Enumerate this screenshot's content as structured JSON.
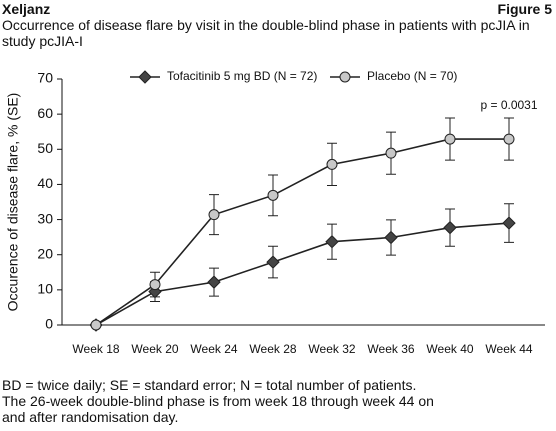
{
  "header": {
    "brand": "Xeljanz",
    "figure": "Figure 5"
  },
  "footnotes": [
    "BD = twice daily; SE = standard error; N = total number of patients.",
    "The 26-week double-blind phase is from week 18 through week 44 on and after randomisation day."
  ],
  "chart_data": {
    "type": "line",
    "title": "Occurrence of disease flare by visit in the double-blind phase in patients with pcJIA in study  pcJIA-I",
    "y_label": "Occurence of disease flare, % (SE)",
    "categories": [
      "Week 18",
      "Week 20",
      "Week 24",
      "Week 28",
      "Week 32",
      "Week 36",
      "Week 40",
      "Week 44"
    ],
    "series": [
      {
        "name": "Tofacitinib 5 mg BD (N = 72)",
        "color": "#444444",
        "marker": "diamond",
        "values": [
          0,
          9.5,
          12.2,
          17.9,
          23.7,
          24.9,
          27.7,
          29.0
        ],
        "errors": [
          null,
          2.8,
          4.0,
          4.5,
          5.0,
          5.0,
          5.3,
          5.5
        ]
      },
      {
        "name": "Placebo (N = 70)",
        "color": "#c8c8c8",
        "marker": "circle",
        "values": [
          0,
          11.5,
          31.4,
          36.9,
          45.7,
          48.9,
          52.9,
          52.9
        ],
        "errors": [
          null,
          3.5,
          5.7,
          5.8,
          6.0,
          6.0,
          6.0,
          6.0
        ]
      }
    ],
    "annotation": "p = 0.0031",
    "ylim": [
      0,
      70
    ],
    "yticks": [
      0,
      10,
      20,
      30,
      40,
      50,
      60,
      70
    ],
    "grid": false
  }
}
